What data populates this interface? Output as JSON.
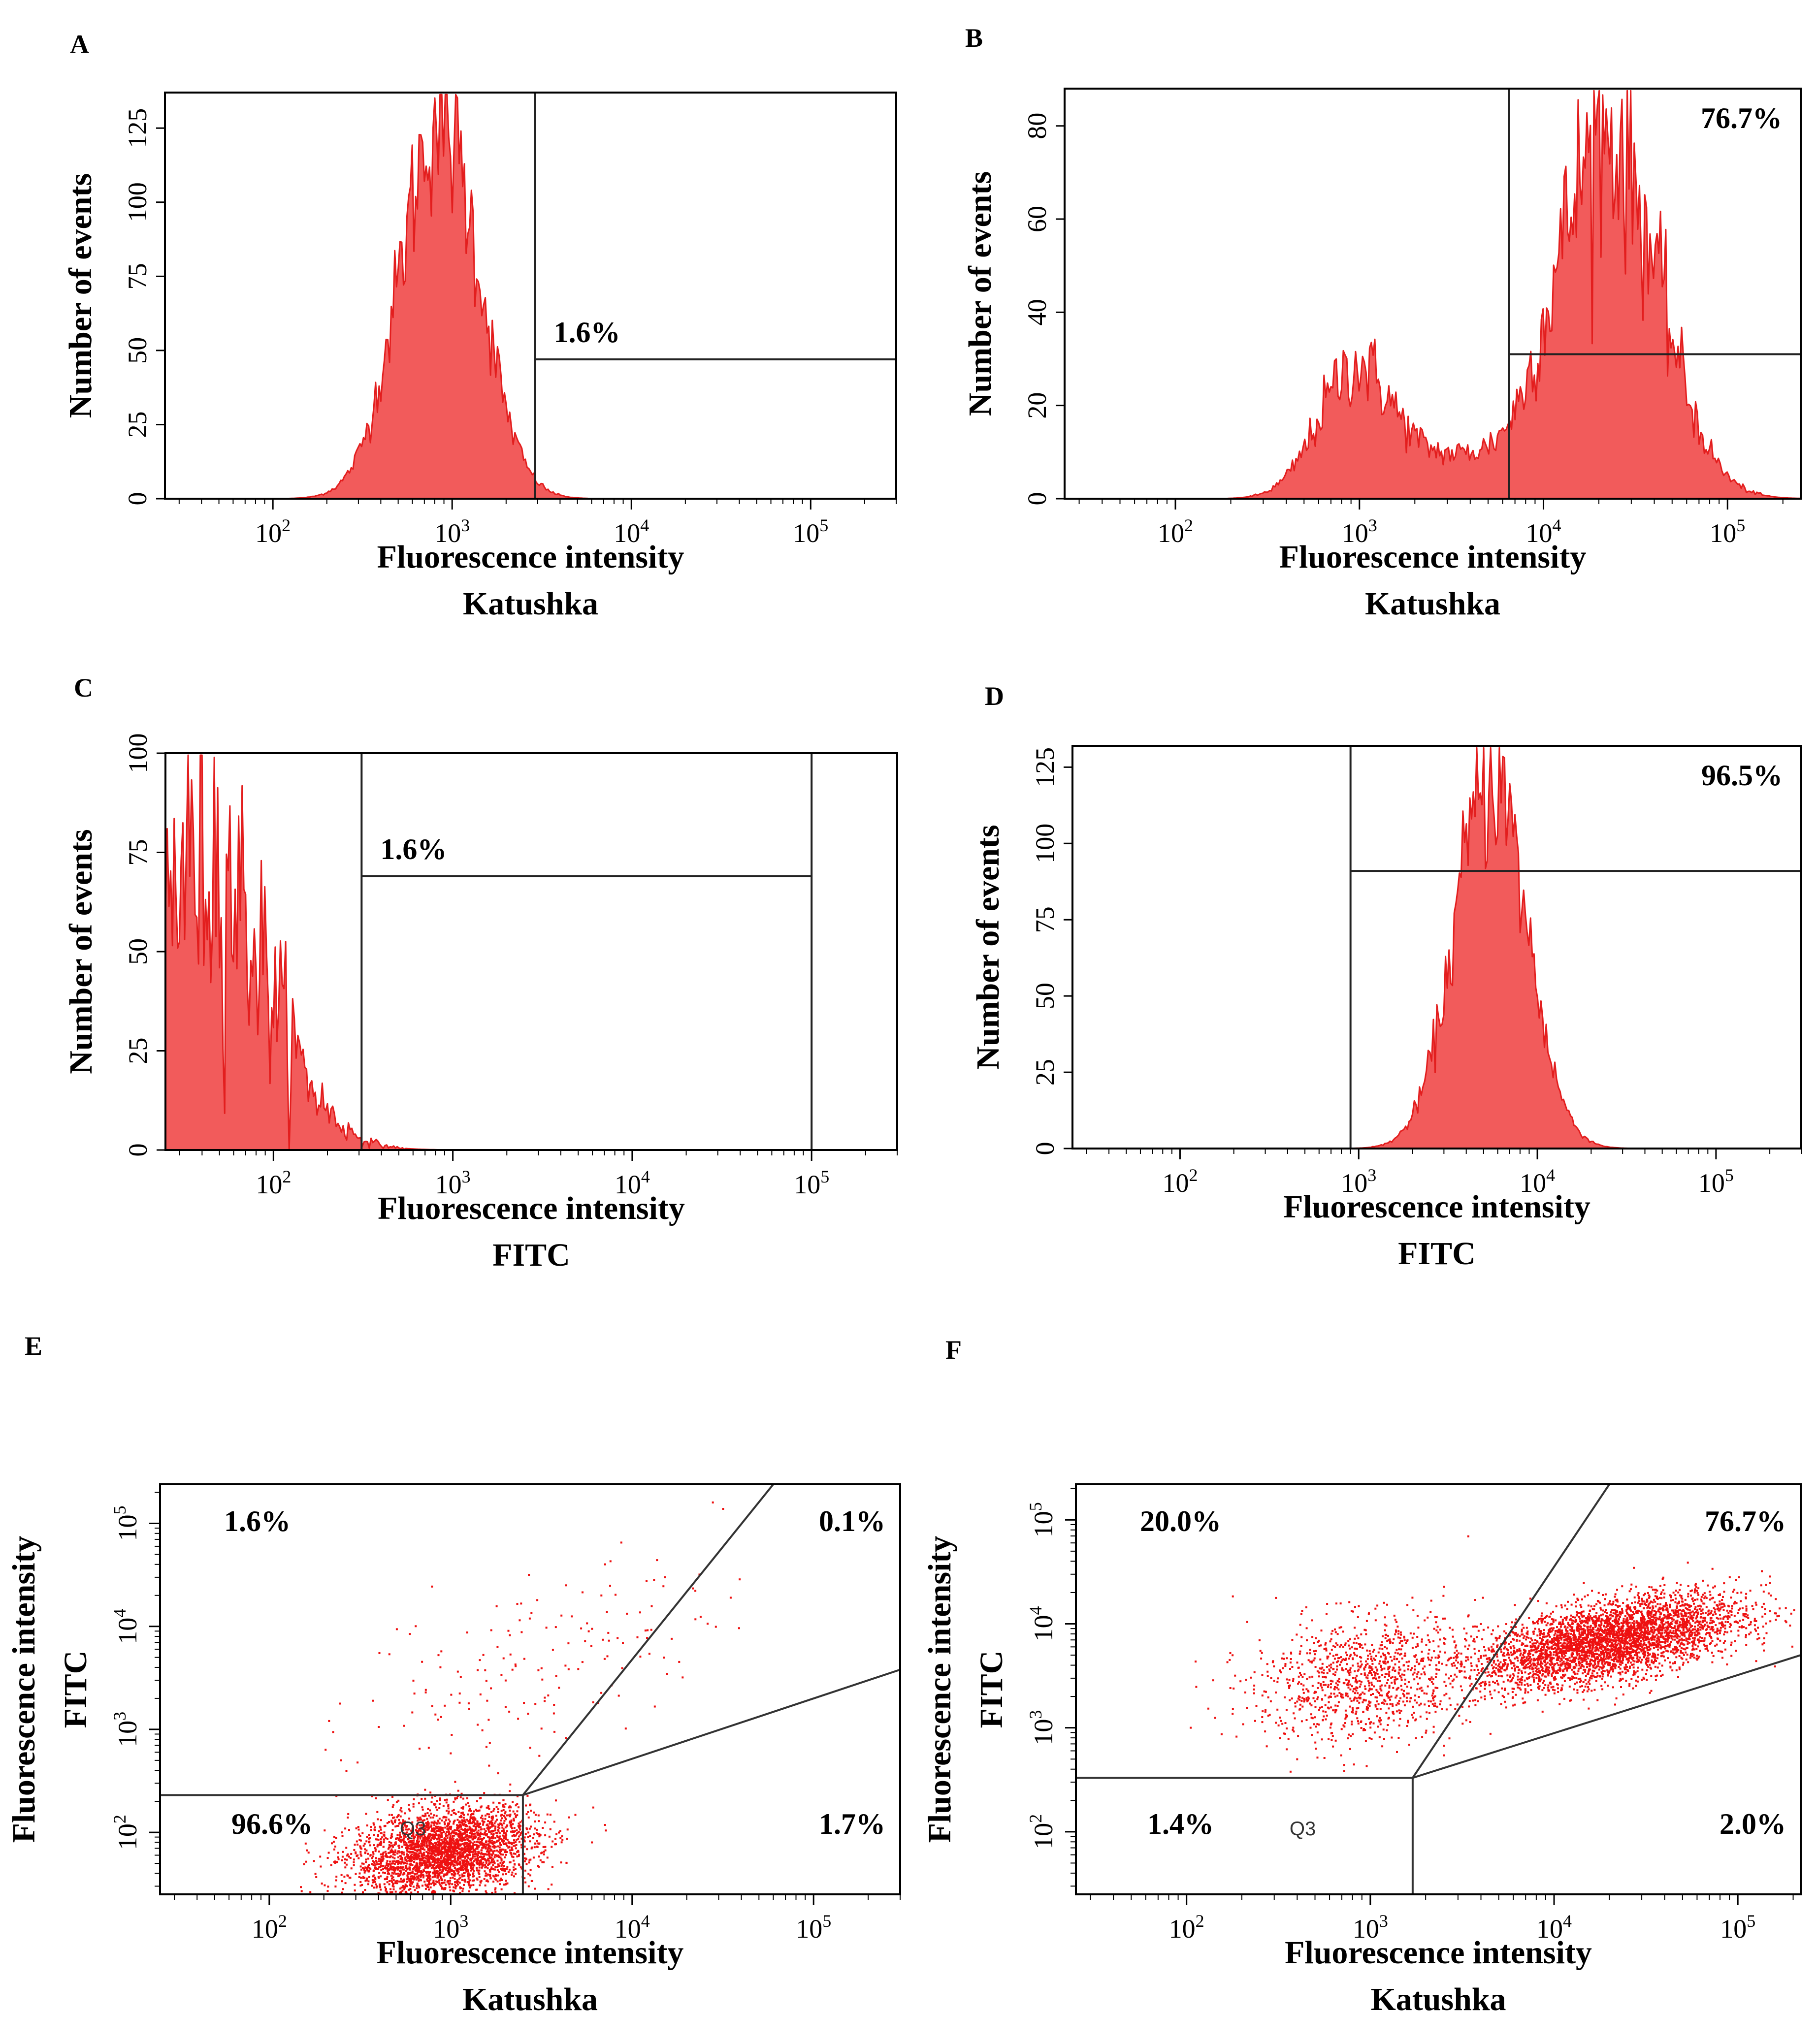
{
  "colors": {
    "fill": "#f25b5b",
    "stroke": "#e31e1e",
    "dot": "#ee1111",
    "frame": "#000000"
  },
  "chart_data": [
    {
      "id": "A",
      "type": "histogram",
      "xlabel": [
        "Fluorescence intensity",
        "Katushka"
      ],
      "ylabel": "Number of events",
      "xscale": "log",
      "xlim": [
        25,
        300000
      ],
      "ylim": [
        0,
        137
      ],
      "xticks": [
        {
          "v": 100,
          "b": "10",
          "e": "2"
        },
        {
          "v": 1000,
          "b": "10",
          "e": "3"
        },
        {
          "v": 10000,
          "b": "10",
          "e": "4"
        },
        {
          "v": 100000,
          "b": "10",
          "e": "5"
        }
      ],
      "yticks": [
        0,
        25,
        50,
        75,
        100,
        125
      ],
      "peaks": [
        {
          "center": 850,
          "sigma": 0.22,
          "height": 128
        }
      ],
      "noise": 0.12,
      "gate": {
        "x1": 2900,
        "x2": 300000,
        "y": 47,
        "full_height_right": true,
        "label": "1.6%"
      }
    },
    {
      "id": "B",
      "type": "histogram",
      "xlabel": [
        "Fluorescence intensity",
        "Katushka"
      ],
      "ylabel": "Number of events",
      "xscale": "log",
      "xlim": [
        25,
        250000
      ],
      "ylim": [
        0,
        88
      ],
      "xticks": [
        {
          "v": 100,
          "b": "10",
          "e": "2"
        },
        {
          "v": 1000,
          "b": "10",
          "e": "3"
        },
        {
          "v": 10000,
          "b": "10",
          "e": "4"
        },
        {
          "v": 100000,
          "b": "10",
          "e": "5"
        }
      ],
      "yticks": [
        0,
        20,
        40,
        60,
        80
      ],
      "peaks": [
        {
          "center": 950,
          "sigma": 0.2,
          "height": 28
        },
        {
          "center": 3200,
          "sigma": 0.25,
          "height": 8
        },
        {
          "center": 22000,
          "sigma": 0.28,
          "height": 78
        }
      ],
      "noise": 0.16,
      "gate": {
        "x1": 6500,
        "x2": 250000,
        "y": 31,
        "full_height_right": false,
        "label": "76.7%"
      }
    },
    {
      "id": "C",
      "type": "histogram",
      "xlabel": [
        "Fluorescence intensity",
        "FITC"
      ],
      "ylabel": "Number of events",
      "xscale": "log",
      "xlim": [
        25,
        300000
      ],
      "ylim": [
        0,
        100
      ],
      "xticks": [
        {
          "v": 100,
          "b": "10",
          "e": "2"
        },
        {
          "v": 1000,
          "b": "10",
          "e": "3"
        },
        {
          "v": 10000,
          "b": "10",
          "e": "4"
        },
        {
          "v": 100000,
          "b": "10",
          "e": "5"
        }
      ],
      "yticks": [
        0,
        25,
        50,
        75,
        100
      ],
      "peaks": [
        {
          "center": 40,
          "sigma": 0.35,
          "height": 75
        }
      ],
      "noise": 0.3,
      "gate": {
        "x1": 310,
        "x2": 100000,
        "y": 69,
        "full_height_right": true,
        "label": "1.6%"
      }
    },
    {
      "id": "D",
      "type": "histogram",
      "xlabel": [
        "Fluorescence intensity",
        "FITC"
      ],
      "ylabel": "Number of events",
      "xscale": "log",
      "xlim": [
        25,
        300000
      ],
      "ylim": [
        0,
        132
      ],
      "xticks": [
        {
          "v": 100,
          "b": "10",
          "e": "2"
        },
        {
          "v": 1000,
          "b": "10",
          "e": "3"
        },
        {
          "v": 10000,
          "b": "10",
          "e": "4"
        },
        {
          "v": 100000,
          "b": "10",
          "e": "5"
        }
      ],
      "yticks": [
        0,
        25,
        50,
        75,
        100,
        125
      ],
      "peaks": [
        {
          "center": 5500,
          "sigma": 0.2,
          "height": 122
        }
      ],
      "noise": 0.12,
      "gate": {
        "x1": 900,
        "x2": 300000,
        "y": 91,
        "full_height_right": false,
        "label": "96.5%"
      }
    },
    {
      "id": "E",
      "type": "scatter",
      "xlabel": [
        "Fluorescence intensity",
        "Katushka"
      ],
      "ylabel": [
        "Fluorescence intensity",
        "FITC"
      ],
      "xscale": "log",
      "yscale": "log",
      "xlim": [
        25,
        300000
      ],
      "ylim": [
        25,
        240000
      ],
      "xticks": [
        {
          "v": 100,
          "b": "10",
          "e": "2"
        },
        {
          "v": 1000,
          "b": "10",
          "e": "3"
        },
        {
          "v": 10000,
          "b": "10",
          "e": "4"
        },
        {
          "v": 100000,
          "b": "10",
          "e": "5"
        }
      ],
      "yticks": [
        {
          "v": 100,
          "b": "10",
          "e": "2"
        },
        {
          "v": 1000,
          "b": "10",
          "e": "3"
        },
        {
          "v": 10000,
          "b": "10",
          "e": "4"
        },
        {
          "v": 100000,
          "b": "10",
          "e": "5"
        }
      ],
      "clusters": [
        {
          "cx": 900,
          "cy": 65,
          "sx": 0.25,
          "sy": 0.22,
          "n": 3200,
          "rho": 0.25
        },
        {
          "cx": 3000,
          "cy": 5000,
          "sx": 0.5,
          "sy": 0.5,
          "n": 170,
          "rho": 0.5
        }
      ],
      "quadrant": {
        "x": 2500,
        "y": 230,
        "line1_end": [
          60000,
          240000
        ],
        "line2_end": [
          300000,
          3800
        ]
      },
      "labels": [
        "1.6%",
        "0.1%",
        "96.6%",
        "1.7%"
      ],
      "qname": "Q3"
    },
    {
      "id": "F",
      "type": "scatter",
      "xlabel": [
        "Fluorescence intensity",
        "Katushka"
      ],
      "ylabel": [
        "Fluorescence intensity",
        "FITC"
      ],
      "xscale": "log",
      "yscale": "log",
      "xlim": [
        25,
        220000
      ],
      "ylim": [
        25,
        220000
      ],
      "xticks": [
        {
          "v": 100,
          "b": "10",
          "e": "2"
        },
        {
          "v": 1000,
          "b": "10",
          "e": "3"
        },
        {
          "v": 10000,
          "b": "10",
          "e": "4"
        },
        {
          "v": 100000,
          "b": "10",
          "e": "5"
        }
      ],
      "yticks": [
        {
          "v": 100,
          "b": "10",
          "e": "2"
        },
        {
          "v": 1000,
          "b": "10",
          "e": "3"
        },
        {
          "v": 10000,
          "b": "10",
          "e": "4"
        },
        {
          "v": 100000,
          "b": "10",
          "e": "5"
        }
      ],
      "clusters": [
        {
          "cx": 20000,
          "cy": 7000,
          "sx": 0.35,
          "sy": 0.22,
          "n": 4000,
          "rho": 0.55
        },
        {
          "cx": 900,
          "cy": 3000,
          "sx": 0.3,
          "sy": 0.3,
          "n": 1100,
          "rho": 0.2
        }
      ],
      "quadrant": {
        "x": 1700,
        "y": 330,
        "line1_end": [
          20000,
          220000
        ],
        "line2_end": [
          220000,
          5000
        ]
      },
      "labels": [
        "20.0%",
        "76.7%",
        "1.4%",
        "2.0%"
      ],
      "qname": "Q3"
    }
  ]
}
